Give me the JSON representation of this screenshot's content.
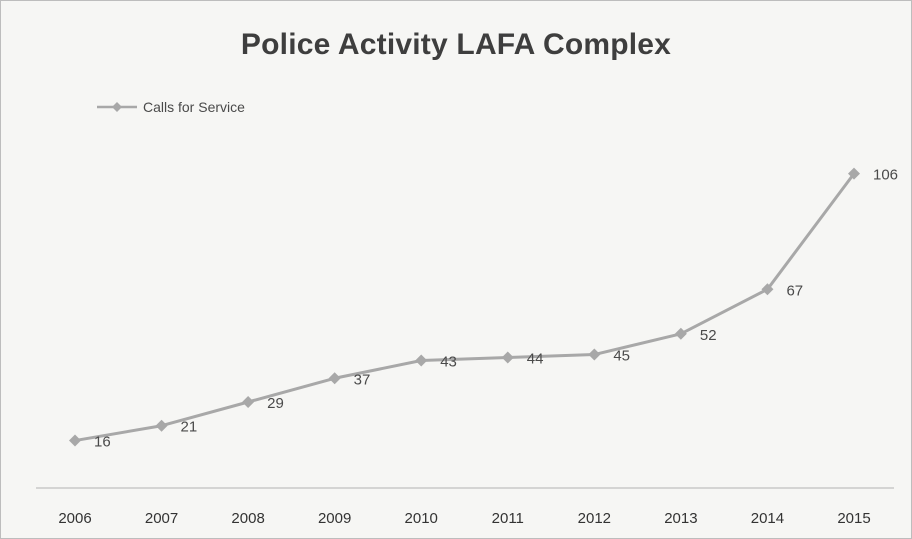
{
  "chart_data": {
    "type": "line",
    "title": "Police Activity LAFA Complex",
    "categories": [
      "2006",
      "2007",
      "2008",
      "2009",
      "2010",
      "2011",
      "2012",
      "2013",
      "2014",
      "2015"
    ],
    "series": [
      {
        "name": "Calls for Service",
        "values": [
          16,
          21,
          29,
          37,
          43,
          44,
          45,
          52,
          67,
          106
        ],
        "color": "#a8a8a8"
      }
    ],
    "data_labels": true,
    "legend_position": "top-left",
    "grid": false,
    "ylim": [
      0,
      116
    ]
  }
}
